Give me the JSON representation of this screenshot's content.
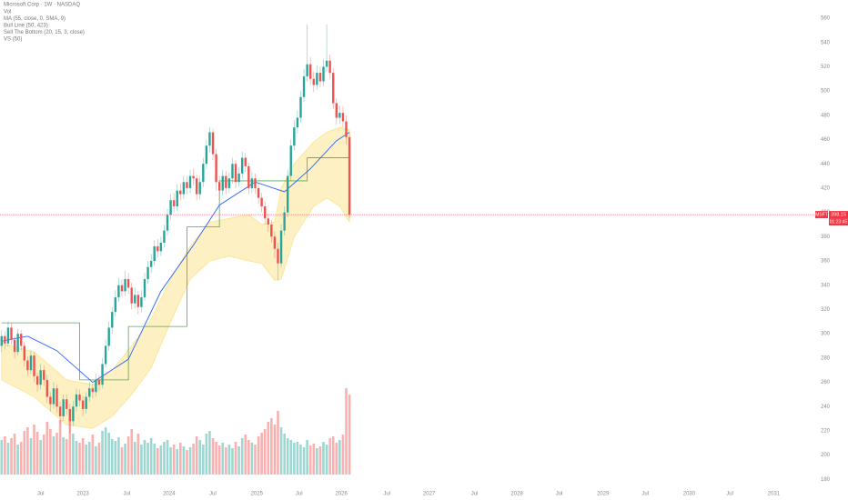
{
  "chart_data": {
    "type": "candlestick",
    "title": "Microsoft Corp · 1W · NASDAQ",
    "legend": [
      "Vol",
      "MA (55, close, 0, SMA, 9)",
      "Bull Line (50, 423)",
      "Sell The Bottom (20, 15, 3, close)",
      "VS (50)"
    ],
    "symbol": "MSFT",
    "countdown": "01:23:45",
    "up_color": "#26a69a",
    "down_color": "#ef5350",
    "price_line_color": "#f23645",
    "open": [
      290,
      298,
      292,
      305,
      295,
      285,
      300,
      290,
      278,
      270,
      282,
      265,
      258,
      270,
      262,
      248,
      242,
      255,
      240,
      232,
      246,
      238,
      228,
      240,
      250,
      245,
      238,
      248,
      255,
      252,
      262,
      258,
      275,
      290,
      305,
      318,
      330,
      340,
      335,
      345,
      338,
      325,
      332,
      322,
      330,
      345,
      355,
      360,
      372,
      368,
      375,
      385,
      398,
      410,
      405,
      418,
      415,
      425,
      420,
      430,
      428,
      415,
      425,
      440,
      455,
      466,
      448,
      425,
      418,
      430,
      420,
      428,
      440,
      425,
      432,
      445,
      438,
      420,
      428,
      420,
      412,
      405,
      395,
      390,
      380,
      370,
      358,
      385,
      400,
      430,
      455,
      470,
      478,
      495,
      512,
      522,
      510,
      505,
      515,
      508,
      520,
      525,
      515,
      490,
      478,
      482,
      475,
      462
    ],
    "high": [
      303,
      302,
      310,
      309,
      298,
      304,
      303,
      293,
      281,
      287,
      285,
      268,
      275,
      274,
      266,
      252,
      260,
      258,
      244,
      250,
      250,
      242,
      245,
      255,
      254,
      249,
      252,
      260,
      259,
      267,
      266,
      280,
      295,
      310,
      322,
      336,
      346,
      345,
      352,
      350,
      342,
      338,
      335,
      336,
      350,
      360,
      366,
      377,
      378,
      380,
      390,
      403,
      415,
      416,
      423,
      424,
      430,
      430,
      435,
      436,
      431,
      430,
      445,
      460,
      470,
      469,
      452,
      430,
      435,
      434,
      433,
      445,
      443,
      437,
      450,
      449,
      441,
      433,
      432,
      424,
      416,
      409,
      399,
      394,
      384,
      375,
      390,
      405,
      435,
      460,
      476,
      484,
      500,
      518,
      555,
      528,
      516,
      521,
      520,
      526,
      555,
      530,
      519,
      494,
      488,
      487,
      480,
      466
    ],
    "low": [
      285,
      287,
      289,
      291,
      280,
      282,
      286,
      273,
      265,
      267,
      260,
      252,
      254,
      257,
      243,
      236,
      238,
      235,
      226,
      228,
      233,
      218,
      224,
      236,
      240,
      232,
      234,
      244,
      247,
      248,
      253,
      255,
      272,
      286,
      300,
      314,
      326,
      330,
      331,
      333,
      320,
      321,
      316,
      318,
      327,
      341,
      350,
      356,
      363,
      364,
      371,
      381,
      394,
      400,
      401,
      410,
      411,
      415,
      416,
      422,
      410,
      411,
      421,
      436,
      450,
      443,
      418,
      410,
      414,
      415,
      416,
      424,
      420,
      421,
      428,
      433,
      415,
      416,
      415,
      407,
      400,
      390,
      384,
      375,
      362,
      344,
      355,
      381,
      396,
      426,
      451,
      465,
      474,
      491,
      508,
      505,
      499,
      501,
      503,
      504,
      516,
      510,
      485,
      472,
      473,
      470,
      456,
      395
    ],
    "close": [
      298,
      292,
      305,
      295,
      285,
      300,
      290,
      278,
      270,
      282,
      265,
      258,
      270,
      262,
      248,
      242,
      255,
      240,
      232,
      246,
      238,
      228,
      240,
      250,
      245,
      238,
      248,
      255,
      252,
      262,
      258,
      275,
      290,
      305,
      318,
      330,
      340,
      335,
      345,
      338,
      325,
      332,
      322,
      330,
      345,
      355,
      360,
      372,
      368,
      375,
      385,
      398,
      410,
      405,
      418,
      415,
      425,
      420,
      430,
      428,
      415,
      425,
      440,
      455,
      466,
      448,
      425,
      418,
      430,
      420,
      428,
      440,
      425,
      432,
      445,
      438,
      420,
      428,
      420,
      412,
      405,
      395,
      390,
      380,
      370,
      358,
      385,
      400,
      430,
      455,
      470,
      478,
      495,
      512,
      522,
      510,
      505,
      515,
      508,
      520,
      525,
      515,
      490,
      478,
      482,
      475,
      462,
      398.15
    ],
    "volume": [
      38,
      42,
      35,
      40,
      45,
      33,
      36,
      48,
      52,
      40,
      55,
      47,
      38,
      44,
      58,
      50,
      42,
      46,
      60,
      41,
      39,
      62,
      45,
      37,
      35,
      40,
      33,
      36,
      44,
      31,
      35,
      48,
      52,
      46,
      39,
      37,
      41,
      30,
      34,
      42,
      50,
      36,
      45,
      33,
      38,
      35,
      40,
      34,
      29,
      32,
      36,
      38,
      30,
      33,
      28,
      35,
      31,
      27,
      30,
      34,
      42,
      38,
      33,
      45,
      48,
      40,
      36,
      32,
      35,
      30,
      33,
      29,
      36,
      31,
      40,
      44,
      38,
      35,
      33,
      42,
      46,
      50,
      58,
      62,
      55,
      70,
      52,
      45,
      40,
      38,
      35,
      36,
      33,
      30,
      38,
      32,
      34,
      29,
      31,
      36,
      33,
      40,
      42,
      35,
      38,
      44,
      95,
      88
    ],
    "ma_line": {
      "color": "#2962ff",
      "x": [
        0,
        8,
        17,
        28,
        39,
        49,
        59,
        67,
        78,
        87,
        95,
        103,
        107
      ],
      "values": [
        294,
        298,
        286,
        260,
        279,
        335,
        373,
        406,
        425,
        417,
        436,
        459,
        466
      ]
    },
    "bull_line": {
      "color": "#4caf50",
      "x": [
        0,
        24,
        39,
        57,
        67,
        94,
        107
      ],
      "values": [
        309,
        262,
        306,
        388,
        426,
        445,
        445
      ]
    },
    "band": {
      "color": "#fbe38a",
      "x": [
        0,
        10,
        20,
        28,
        34,
        40,
        46,
        52,
        58,
        64,
        70,
        76,
        80,
        84,
        86,
        90,
        96,
        100,
        104,
        107
      ],
      "upper": [
        292,
        285,
        262,
        258,
        270,
        290,
        312,
        345,
        372,
        392,
        395,
        398,
        390,
        392,
        420,
        440,
        458,
        466,
        470,
        468
      ],
      "lower": [
        262,
        248,
        225,
        222,
        232,
        250,
        272,
        310,
        345,
        360,
        364,
        360,
        358,
        344,
        345,
        380,
        405,
        412,
        405,
        392
      ]
    },
    "xlim": [
      -0.5,
      250
    ],
    "ylim": [
      175,
      575
    ],
    "yticks": [
      180,
      200,
      220,
      240,
      260,
      280,
      300,
      320,
      340,
      360,
      380,
      400,
      420,
      440,
      460,
      480,
      500,
      520,
      540,
      560
    ],
    "xticks": [
      {
        "value": 12,
        "label": "Jul"
      },
      {
        "value": 25,
        "label": "2023"
      },
      {
        "value": 38.5,
        "label": "Jul"
      },
      {
        "value": 51.5,
        "label": "2024"
      },
      {
        "value": 65,
        "label": "Jul"
      },
      {
        "value": 78.5,
        "label": "2025"
      },
      {
        "value": 91.5,
        "label": "Jul"
      },
      {
        "value": 104.5,
        "label": "2026"
      },
      {
        "value": 118.5,
        "label": "Jul"
      },
      {
        "value": 131.5,
        "label": "2027"
      },
      {
        "value": 145.5,
        "label": "Jul"
      },
      {
        "value": 158.5,
        "label": "2028"
      },
      {
        "value": 171.5,
        "label": "Jul"
      },
      {
        "value": 185,
        "label": "2029"
      },
      {
        "value": 198,
        "label": "Jul"
      },
      {
        "value": 211.5,
        "label": "2030"
      },
      {
        "value": 224,
        "label": "Jul"
      },
      {
        "value": 237.5,
        "label": "2031"
      }
    ],
    "grid": false
  }
}
